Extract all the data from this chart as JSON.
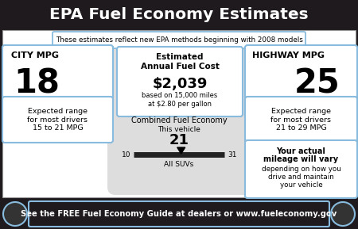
{
  "title": "EPA Fuel Economy Estimates",
  "subtitle": "These estimates reflect new EPA methods beginning with 2008 models",
  "city_mpg": "18",
  "city_label": "CITY MPG",
  "city_range": "Expected range\nfor most drivers\n15 to 21 MPG",
  "highway_mpg": "25",
  "highway_label": "HIGHWAY MPG",
  "highway_range": "Expected range\nfor most drivers\n21 to 29 MPG",
  "fuel_cost_label": "Estimated\nAnnual Fuel Cost",
  "fuel_cost": "$2,039",
  "fuel_cost_basis": "based on 15,000 miles\nat $2.80 per gallon",
  "combined_label": "Combined Fuel Economy",
  "combined_vehicle_label": "This vehicle",
  "combined_value": "21",
  "combined_min": "10",
  "combined_max": "31",
  "combined_category": "All SUVs",
  "mileage_line1": "Your actual",
  "mileage_line2": "mileage will vary",
  "mileage_line3": "depending on how you",
  "mileage_line4": "drive and maintain",
  "mileage_line5": "your vehicle",
  "footer": "See the FREE Fuel Economy Guide at dealers or www.fueleconomy.gov",
  "header_bg": "#1e1a1e",
  "body_bg": "#ffffff",
  "border_color": "#88bbdd",
  "footer_bg": "#1e1a1e",
  "gray_silhouette": "#cccccc",
  "slider_dark": "#222222"
}
